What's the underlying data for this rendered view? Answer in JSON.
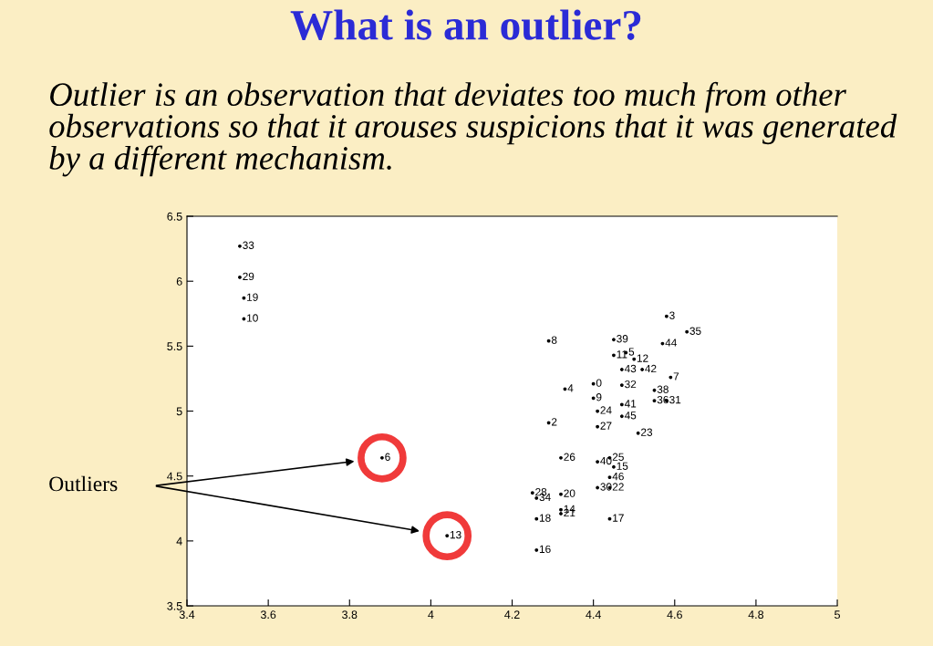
{
  "chart_data": {
    "type": "scatter",
    "title": "What is an outlier?",
    "subtitle": "Outlier is an observation that deviates too much from other observations so that it arouses suspicions that it was generated by a different mechanism.",
    "series": [
      {
        "color": "#000000",
        "marker": "circle",
        "x": [
          3.53,
          3.53,
          3.54,
          3.54,
          4.29,
          4.45,
          4.58,
          4.63,
          4.57,
          4.45,
          4.48,
          4.5,
          4.47,
          4.52,
          4.59,
          4.4,
          4.47,
          4.33,
          4.55,
          4.4,
          4.55,
          4.58,
          4.47,
          4.41,
          4.47,
          4.29,
          4.41,
          4.51,
          3.88,
          4.32,
          4.41,
          4.44,
          4.45,
          4.44,
          4.41,
          4.44,
          4.25,
          4.32,
          4.26,
          4.32,
          4.32,
          4.26,
          4.44,
          4.04,
          4.26
        ],
        "values": [
          6.27,
          6.03,
          5.87,
          5.71,
          5.54,
          5.55,
          5.73,
          5.61,
          5.52,
          5.43,
          5.45,
          5.4,
          5.32,
          5.32,
          5.26,
          5.21,
          5.2,
          5.17,
          5.16,
          5.1,
          5.08,
          5.08,
          5.05,
          5.0,
          4.96,
          4.91,
          4.88,
          4.83,
          4.64,
          4.64,
          4.61,
          4.64,
          4.57,
          4.49,
          4.41,
          4.41,
          4.37,
          4.36,
          4.33,
          4.24,
          4.21,
          4.17,
          4.17,
          4.04,
          3.93
        ]
      },
      {
        "type": "scatter",
        "color": "#f03a3a",
        "marker": "circle",
        "x": [
          3.88,
          4.04
        ],
        "values": [
          4.64,
          4.04
        ]
      }
    ],
    "annotations": [
      {
        "text": "33",
        "x": 3.53,
        "y": 6.27
      },
      {
        "text": "29",
        "x": 3.53,
        "y": 6.03
      },
      {
        "text": "19",
        "x": 3.54,
        "y": 5.87
      },
      {
        "text": "10",
        "x": 3.54,
        "y": 5.71
      },
      {
        "text": "8",
        "x": 4.29,
        "y": 5.54
      },
      {
        "text": "39",
        "x": 4.45,
        "y": 5.55
      },
      {
        "text": "3",
        "x": 4.58,
        "y": 5.73
      },
      {
        "text": "35",
        "x": 4.63,
        "y": 5.61
      },
      {
        "text": "44",
        "x": 4.57,
        "y": 5.52
      },
      {
        "text": "11",
        "x": 4.45,
        "y": 5.43
      },
      {
        "text": "5",
        "x": 4.48,
        "y": 5.45
      },
      {
        "text": "12",
        "x": 4.5,
        "y": 5.4
      },
      {
        "text": "43",
        "x": 4.47,
        "y": 5.32
      },
      {
        "text": "42",
        "x": 4.52,
        "y": 5.32
      },
      {
        "text": "7",
        "x": 4.59,
        "y": 5.26
      },
      {
        "text": "0",
        "x": 4.4,
        "y": 5.21
      },
      {
        "text": "32",
        "x": 4.47,
        "y": 5.2
      },
      {
        "text": "4",
        "x": 4.33,
        "y": 5.17
      },
      {
        "text": "38",
        "x": 4.55,
        "y": 5.16
      },
      {
        "text": "9",
        "x": 4.4,
        "y": 5.1
      },
      {
        "text": "36",
        "x": 4.55,
        "y": 5.08
      },
      {
        "text": "31",
        "x": 4.58,
        "y": 5.08
      },
      {
        "text": "41",
        "x": 4.47,
        "y": 5.05
      },
      {
        "text": "24",
        "x": 4.41,
        "y": 5.0
      },
      {
        "text": "45",
        "x": 4.47,
        "y": 4.96
      },
      {
        "text": "2",
        "x": 4.29,
        "y": 4.91
      },
      {
        "text": "27",
        "x": 4.41,
        "y": 4.88
      },
      {
        "text": "23",
        "x": 4.51,
        "y": 4.83
      },
      {
        "text": "6",
        "x": 3.88,
        "y": 4.64
      },
      {
        "text": "26",
        "x": 4.32,
        "y": 4.64
      },
      {
        "text": "40",
        "x": 4.41,
        "y": 4.61
      },
      {
        "text": "25",
        "x": 4.44,
        "y": 4.64
      },
      {
        "text": "15",
        "x": 4.45,
        "y": 4.57
      },
      {
        "text": "46",
        "x": 4.44,
        "y": 4.49
      },
      {
        "text": "30",
        "x": 4.41,
        "y": 4.41
      },
      {
        "text": "22",
        "x": 4.44,
        "y": 4.41
      },
      {
        "text": "28",
        "x": 4.25,
        "y": 4.37
      },
      {
        "text": "20",
        "x": 4.32,
        "y": 4.36
      },
      {
        "text": "34",
        "x": 4.26,
        "y": 4.33
      },
      {
        "text": "14",
        "x": 4.32,
        "y": 4.24
      },
      {
        "text": "21",
        "x": 4.32,
        "y": 4.21
      },
      {
        "text": "18",
        "x": 4.26,
        "y": 4.17
      },
      {
        "text": "17",
        "x": 4.44,
        "y": 4.17
      },
      {
        "text": "13",
        "x": 4.04,
        "y": 4.04
      },
      {
        "text": "16",
        "x": 4.26,
        "y": 3.93
      },
      "Outliers"
    ],
    "xlim": [
      3.4,
      5
    ],
    "ylim": [
      3.5,
      6.5
    ],
    "xticks": [
      3.4,
      3.6,
      3.8,
      4,
      4.2,
      4.4,
      4.6,
      4.8,
      5
    ],
    "yticks": [
      3.5,
      4,
      4.5,
      5,
      5.5,
      6,
      6.5
    ],
    "grid": false,
    "legend": false
  }
}
